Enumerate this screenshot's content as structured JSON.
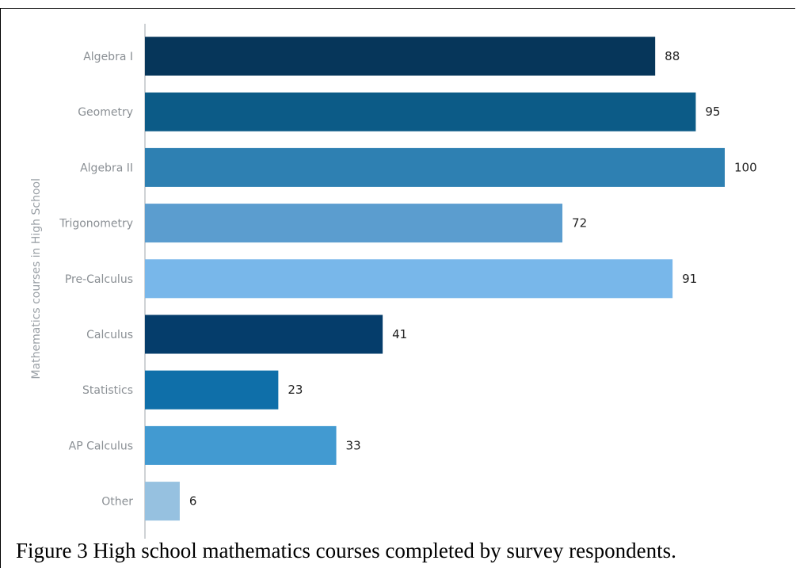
{
  "caption": "Figure 3 High school mathematics courses completed by survey respondents.",
  "colors": {
    "bars": [
      "#06365a",
      "#0c5b87",
      "#2e80b2",
      "#5b9dcf",
      "#78b7ea",
      "#053d6b",
      "#0f6fa9",
      "#429ad1",
      "#96c1e0"
    ],
    "axis": "#bfc3c7"
  },
  "chart_data": {
    "type": "bar",
    "orientation": "horizontal",
    "categories": [
      "Algebra I",
      "Geometry",
      "Algebra II",
      "Trigonometry",
      "Pre-Calculus",
      "Calculus",
      "Statistics",
      "AP Calculus",
      "Other"
    ],
    "values": [
      88,
      95,
      100,
      72,
      91,
      41,
      23,
      33,
      6
    ],
    "ylabel": "Mathematics courses in High School",
    "xlabel": "",
    "xlim": [
      0,
      100
    ],
    "grid": false,
    "legend": "none",
    "data_labels": true
  }
}
